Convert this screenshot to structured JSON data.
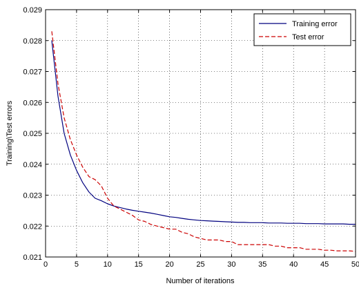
{
  "chart_data": {
    "type": "line",
    "xlabel": "Number of iterations",
    "ylabel": "Training\\Test errors",
    "xlim": [
      0,
      50
    ],
    "ylim": [
      0.021,
      0.029
    ],
    "xticks": [
      0,
      5,
      10,
      15,
      20,
      25,
      30,
      35,
      40,
      45,
      50
    ],
    "xtick_labels": [
      "0",
      "5",
      "10",
      "15",
      "20",
      "25",
      "30",
      "35",
      "40",
      "45",
      "50"
    ],
    "yticks": [
      0.021,
      0.022,
      0.023,
      0.024,
      0.025,
      0.026,
      0.027,
      0.028,
      0.029
    ],
    "ytick_labels": [
      "0.021",
      "0.022",
      "0.023",
      "0.024",
      "0.025",
      "0.026",
      "0.027",
      "0.028",
      "0.029"
    ],
    "grid": true,
    "legend_position": "top-right",
    "series": [
      {
        "name": "Training error",
        "color": "#00007f",
        "style": "solid",
        "x": [
          1,
          2,
          3,
          4,
          5,
          6,
          7,
          8,
          9,
          10,
          11,
          12,
          13,
          14,
          15,
          16,
          17,
          18,
          19,
          20,
          21,
          22,
          23,
          24,
          25,
          26,
          27,
          28,
          29,
          30,
          31,
          32,
          33,
          34,
          35,
          36,
          37,
          38,
          39,
          40,
          41,
          42,
          43,
          44,
          45,
          46,
          47,
          48,
          49,
          50
        ],
        "values": [
          0.028,
          0.0262,
          0.025,
          0.0243,
          0.0238,
          0.0234,
          0.0231,
          0.0229,
          0.02282,
          0.02272,
          0.02265,
          0.0226,
          0.02255,
          0.02251,
          0.02248,
          0.02245,
          0.02242,
          0.02238,
          0.02234,
          0.0223,
          0.02228,
          0.02225,
          0.02222,
          0.0222,
          0.02218,
          0.02217,
          0.02216,
          0.02215,
          0.02214,
          0.02213,
          0.02212,
          0.02212,
          0.02211,
          0.02211,
          0.02211,
          0.0221,
          0.0221,
          0.0221,
          0.02209,
          0.02209,
          0.02209,
          0.02208,
          0.02208,
          0.02208,
          0.02207,
          0.02207,
          0.02207,
          0.02207,
          0.02206,
          0.02206
        ]
      },
      {
        "name": "Test error",
        "color": "#cc0000",
        "style": "dashed",
        "x": [
          1,
          2,
          3,
          4,
          5,
          6,
          7,
          8,
          9,
          10,
          11,
          12,
          13,
          14,
          15,
          16,
          17,
          18,
          19,
          20,
          21,
          22,
          23,
          24,
          25,
          26,
          27,
          28,
          29,
          30,
          31,
          32,
          33,
          34,
          35,
          36,
          37,
          38,
          39,
          40,
          41,
          42,
          43,
          44,
          45,
          46,
          47,
          48,
          49,
          50
        ],
        "values": [
          0.0283,
          0.0266,
          0.0255,
          0.0248,
          0.0243,
          0.0239,
          0.0236,
          0.0235,
          0.0233,
          0.0229,
          0.02265,
          0.02255,
          0.02245,
          0.02235,
          0.0222,
          0.02215,
          0.02205,
          0.022,
          0.02195,
          0.0219,
          0.0219,
          0.0218,
          0.02175,
          0.02165,
          0.0216,
          0.02155,
          0.02155,
          0.02155,
          0.0215,
          0.0215,
          0.0214,
          0.0214,
          0.0214,
          0.0214,
          0.0214,
          0.0214,
          0.02135,
          0.02135,
          0.0213,
          0.0213,
          0.0213,
          0.02125,
          0.02125,
          0.02125,
          0.02122,
          0.02122,
          0.0212,
          0.0212,
          0.0212,
          0.02118
        ]
      }
    ]
  }
}
